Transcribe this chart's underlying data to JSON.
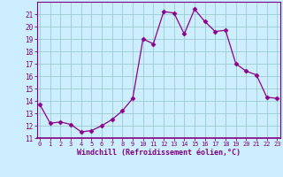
{
  "x": [
    0,
    1,
    2,
    3,
    4,
    5,
    6,
    7,
    8,
    9,
    10,
    11,
    12,
    13,
    14,
    15,
    16,
    17,
    18,
    19,
    20,
    21,
    22,
    23
  ],
  "y": [
    13.7,
    12.2,
    12.3,
    12.1,
    11.5,
    11.6,
    12.0,
    12.5,
    13.2,
    14.2,
    19.0,
    18.6,
    21.2,
    21.1,
    19.4,
    21.4,
    20.4,
    19.6,
    19.7,
    17.0,
    16.4,
    16.1,
    14.3,
    14.2
  ],
  "line_color": "#8b008b",
  "marker": "D",
  "marker_size": 2.5,
  "bg_color": "#cceeff",
  "grid_color": "#99cccc",
  "xlabel": "Windchill (Refroidissement éolien,°C)",
  "xlabel_color": "#800080",
  "tick_color": "#800080",
  "axis_color": "#800080",
  "ylim": [
    11,
    22
  ],
  "yticks": [
    11,
    12,
    13,
    14,
    15,
    16,
    17,
    18,
    19,
    20,
    21
  ],
  "xticks": [
    0,
    1,
    2,
    3,
    4,
    5,
    6,
    7,
    8,
    9,
    10,
    11,
    12,
    13,
    14,
    15,
    16,
    17,
    18,
    19,
    20,
    21,
    22,
    23
  ],
  "xlim": [
    -0.3,
    23.3
  ]
}
